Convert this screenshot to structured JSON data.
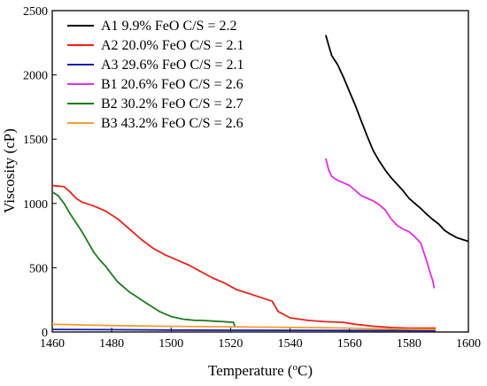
{
  "chart_data": {
    "type": "line",
    "xlabel": "Temperature (",
    "xlabel_sup": "o",
    "xlabel_unit": "C)",
    "ylabel": "Viscosity (cP)",
    "xlim": [
      1460,
      1600
    ],
    "ylim": [
      0,
      2500
    ],
    "xticks": [
      1460,
      1480,
      1500,
      1520,
      1540,
      1560,
      1580,
      1600
    ],
    "yticks": [
      0,
      500,
      1000,
      1500,
      2000,
      2500
    ],
    "legend_position": "top-left",
    "grid": false,
    "series": [
      {
        "name": "A1   9.9% FeO C/S = 2.2",
        "color": "#000000",
        "x": [
          1552,
          1553,
          1554,
          1556,
          1558,
          1560,
          1562,
          1564,
          1566,
          1568,
          1570,
          1572,
          1574,
          1576,
          1578,
          1580,
          1582,
          1584,
          1586,
          1588,
          1590,
          1592,
          1594,
          1596,
          1598,
          1600
        ],
        "y": [
          2310,
          2230,
          2150,
          2080,
          1980,
          1870,
          1760,
          1640,
          1520,
          1410,
          1330,
          1260,
          1200,
          1150,
          1100,
          1040,
          1000,
          960,
          915,
          875,
          840,
          790,
          760,
          735,
          720,
          705
        ]
      },
      {
        "name": "A2 20.0% FeO C/S = 2.1",
        "color": "#e8221b",
        "x": [
          1460,
          1462,
          1464,
          1466,
          1468,
          1470,
          1474,
          1478,
          1482,
          1486,
          1490,
          1494,
          1498,
          1502,
          1506,
          1510,
          1514,
          1518,
          1522,
          1526,
          1530,
          1534,
          1536,
          1540,
          1546,
          1552,
          1558,
          1562,
          1568,
          1574,
          1580,
          1586,
          1589
        ],
        "y": [
          1140,
          1135,
          1130,
          1090,
          1040,
          1010,
          980,
          940,
          880,
          800,
          720,
          650,
          600,
          560,
          520,
          470,
          420,
          380,
          330,
          300,
          270,
          240,
          160,
          110,
          90,
          80,
          75,
          60,
          45,
          35,
          30,
          30,
          30
        ]
      },
      {
        "name": "A3 29.6% FeO C/S = 2.1",
        "color": "#1a1aa6",
        "x": [
          1460,
          1480,
          1500,
          1520,
          1540,
          1560,
          1580,
          1589
        ],
        "y": [
          20,
          18,
          15,
          14,
          13,
          12,
          11,
          10
        ]
      },
      {
        "name": "B1 20.6% FeO C/S = 2.6",
        "color": "#e02ee0",
        "x": [
          1552,
          1553,
          1554,
          1556,
          1558,
          1560,
          1562,
          1564,
          1566,
          1568,
          1570,
          1572,
          1574,
          1576,
          1578,
          1580,
          1582,
          1584,
          1585,
          1586,
          1587,
          1588,
          1588.5
        ],
        "y": [
          1350,
          1260,
          1210,
          1180,
          1160,
          1140,
          1100,
          1060,
          1040,
          1020,
          990,
          950,
          880,
          830,
          800,
          780,
          740,
          690,
          620,
          550,
          470,
          400,
          340
        ]
      },
      {
        "name": "B2 30.2% FeO C/S = 2.7",
        "color": "#1f7a1f",
        "x": [
          1460,
          1462,
          1464,
          1466,
          1468,
          1470,
          1472,
          1474,
          1476,
          1478,
          1480,
          1482,
          1484,
          1486,
          1488,
          1490,
          1492,
          1494,
          1496,
          1498,
          1500,
          1502,
          1504,
          1506,
          1508,
          1510,
          1514,
          1518,
          1521,
          1521.5
        ],
        "y": [
          1090,
          1060,
          1000,
          920,
          850,
          780,
          700,
          620,
          560,
          510,
          450,
          390,
          350,
          310,
          280,
          250,
          220,
          190,
          160,
          140,
          120,
          110,
          100,
          95,
          90,
          90,
          85,
          80,
          75,
          35
        ]
      },
      {
        "name": "B3 43.2% FeO C/S = 2.6",
        "color": "#f0a030",
        "x": [
          1460,
          1470,
          1480,
          1490,
          1500,
          1510,
          1520,
          1530,
          1540,
          1550,
          1560,
          1570,
          1580,
          1589
        ],
        "y": [
          60,
          55,
          50,
          47,
          44,
          42,
          40,
          38,
          36,
          34,
          30,
          25,
          22,
          20
        ]
      }
    ]
  }
}
